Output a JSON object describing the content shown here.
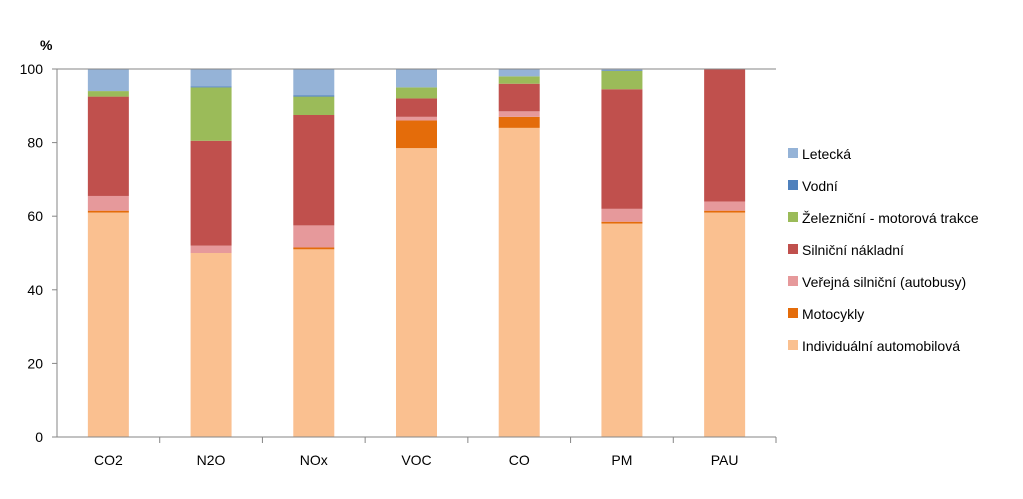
{
  "chart_data": {
    "type": "bar",
    "stacked": true,
    "ylabel": "%",
    "ylim": [
      0,
      100
    ],
    "yticks": [
      0,
      20,
      40,
      60,
      80,
      100
    ],
    "grid": false,
    "legend_position": "right",
    "categories": [
      "CO2",
      "N2O",
      "NOx",
      "VOC",
      "CO",
      "PM",
      "PAU"
    ],
    "series": [
      {
        "name": "Individuální automobilová",
        "color": "#FAC090",
        "values": [
          61.0,
          50.0,
          51.0,
          78.5,
          84.0,
          58.0,
          61.0
        ]
      },
      {
        "name": "Motocykly",
        "color": "#E46C0A",
        "values": [
          0.5,
          0.0,
          0.5,
          7.5,
          3.0,
          0.5,
          0.5
        ]
      },
      {
        "name": "Veřejná silniční (autobusy)",
        "color": "#E6999B",
        "values": [
          4.0,
          2.0,
          6.0,
          1.0,
          1.5,
          3.5,
          2.5
        ]
      },
      {
        "name": "Silniční nákladní",
        "color": "#C0504D",
        "values": [
          27.0,
          28.5,
          30.0,
          5.0,
          7.5,
          32.5,
          36.0
        ]
      },
      {
        "name": "Železniční - motorová trakce",
        "color": "#9BBB59",
        "values": [
          1.5,
          14.5,
          5.0,
          3.0,
          2.0,
          5.0,
          0.0
        ]
      },
      {
        "name": "Vodní",
        "color": "#4F81BD",
        "values": [
          0.0,
          0.3,
          0.3,
          0.0,
          0.0,
          0.2,
          0.0
        ]
      },
      {
        "name": "Letecká",
        "color": "#95B3D7",
        "values": [
          6.0,
          4.7,
          7.2,
          5.0,
          2.0,
          0.3,
          0.0
        ]
      }
    ]
  }
}
